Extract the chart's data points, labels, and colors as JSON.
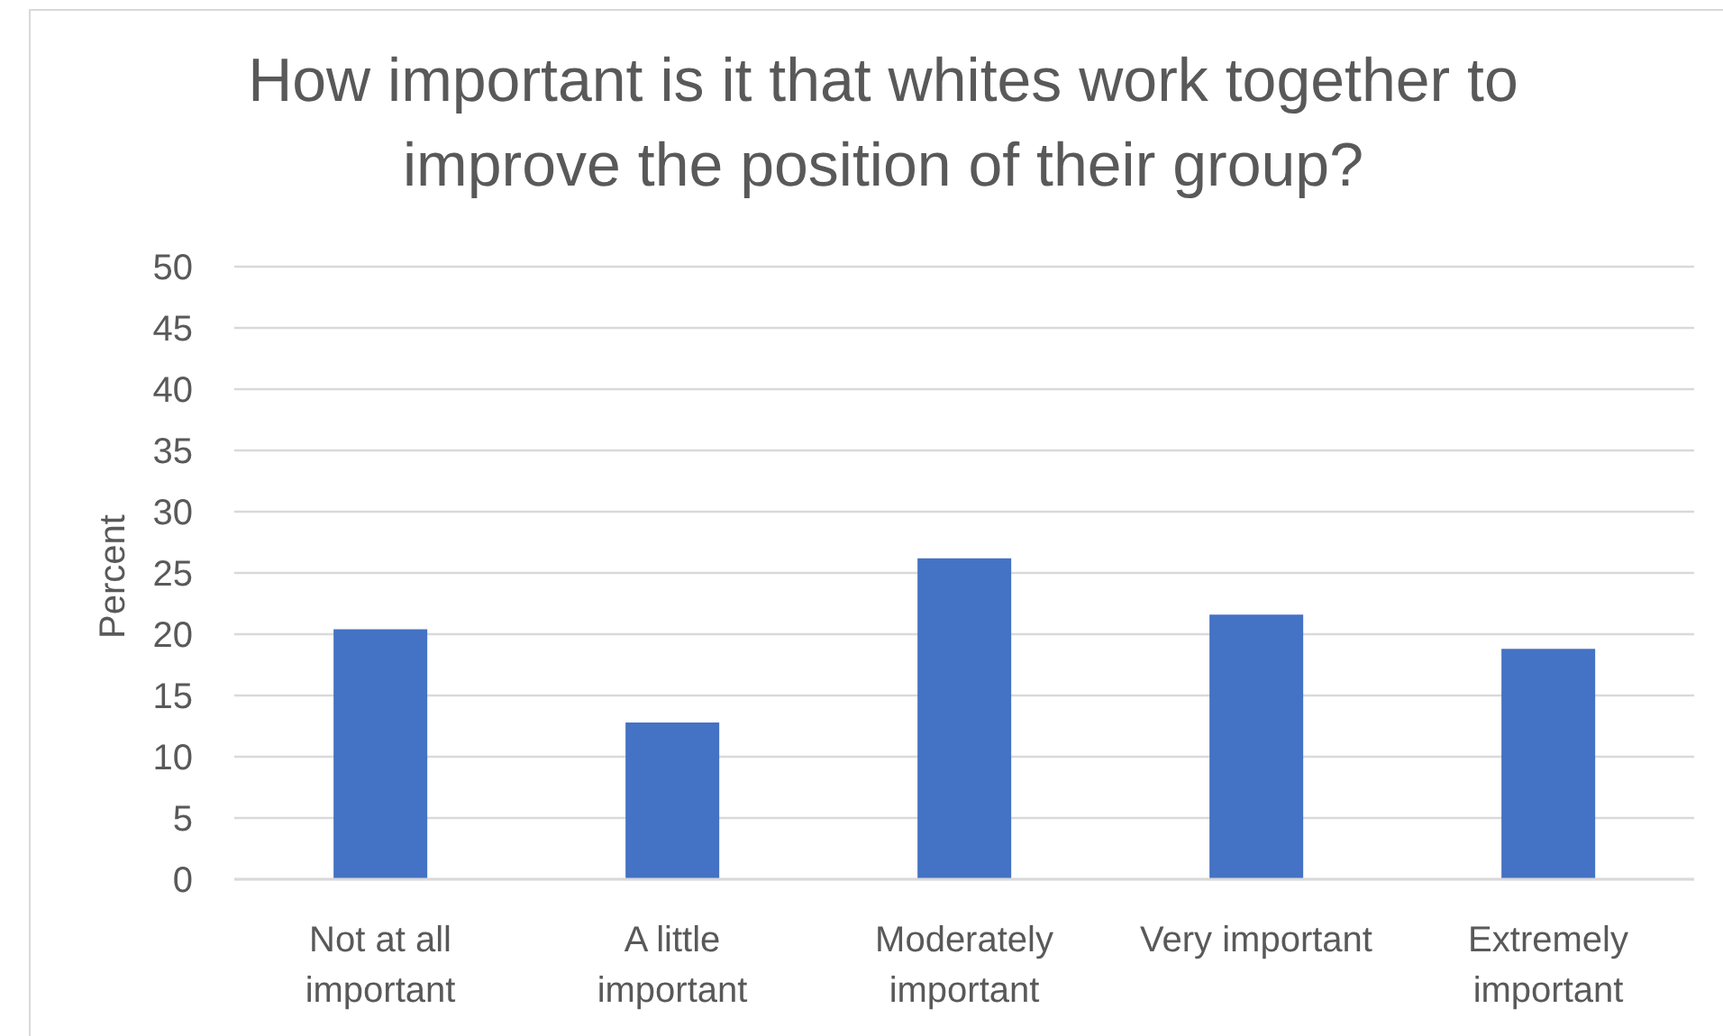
{
  "chart_data": {
    "type": "bar",
    "title": "How important is it that whites work together to improve the position of their group?",
    "ylabel": "Percent",
    "categories": [
      "Not at all important",
      "A little important",
      "Moderately important",
      "Very important",
      "Extremely important"
    ],
    "values": [
      20.4,
      12.8,
      26.2,
      21.6,
      18.8
    ],
    "color": "#4472c4",
    "ylim": [
      0,
      50
    ],
    "yticks": [
      0,
      5,
      10,
      15,
      20,
      25,
      30,
      35,
      40,
      45,
      50
    ],
    "grid": "y"
  }
}
